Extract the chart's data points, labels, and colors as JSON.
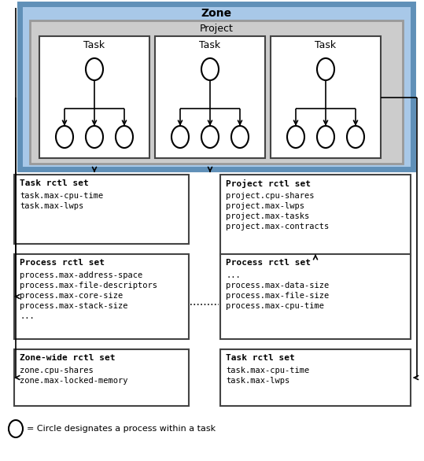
{
  "bg_color": "#ffffff",
  "zone_fill": "#a8c8e8",
  "zone_border": "#6090b8",
  "project_fill": "#cccccc",
  "project_border": "#999999",
  "task_fill": "#ffffff",
  "task_border": "#444444",
  "box_fill": "#ffffff",
  "box_border": "#444444",
  "zone_label": "Zone",
  "project_label": "Project",
  "task_label": "Task",
  "task_rctl_title": "Task rctl set",
  "task_rctl_lines": [
    "task.max-cpu-time",
    "task.max-lwps"
  ],
  "project_rctl_title": "Project rctl set",
  "project_rctl_lines": [
    "project.cpu-shares",
    "project.max-lwps",
    "project.max-tasks",
    "project.max-contracts"
  ],
  "process_rctl1_title": "Process rctl set",
  "process_rctl1_lines": [
    "process.max-address-space",
    "process.max-file-descriptors",
    "process.max-core-size",
    "process.max-stack-size",
    "..."
  ],
  "process_rctl2_title": "Process rctl set",
  "process_rctl2_lines": [
    "...",
    "process.max-data-size",
    "process.max-file-size",
    "process.max-cpu-time"
  ],
  "zone_rctl_title": "Zone-wide rctl set",
  "zone_rctl_lines": [
    "zone.cpu-shares",
    "zone.max-locked-memory"
  ],
  "task_rctl2_title": "Task rctl set",
  "task_rctl2_lines": [
    "task.max-cpu-time",
    "task.max-lwps"
  ],
  "legend_text": "= Circle designates a process within a task",
  "figsize": [
    5.39,
    5.86
  ],
  "dpi": 100
}
